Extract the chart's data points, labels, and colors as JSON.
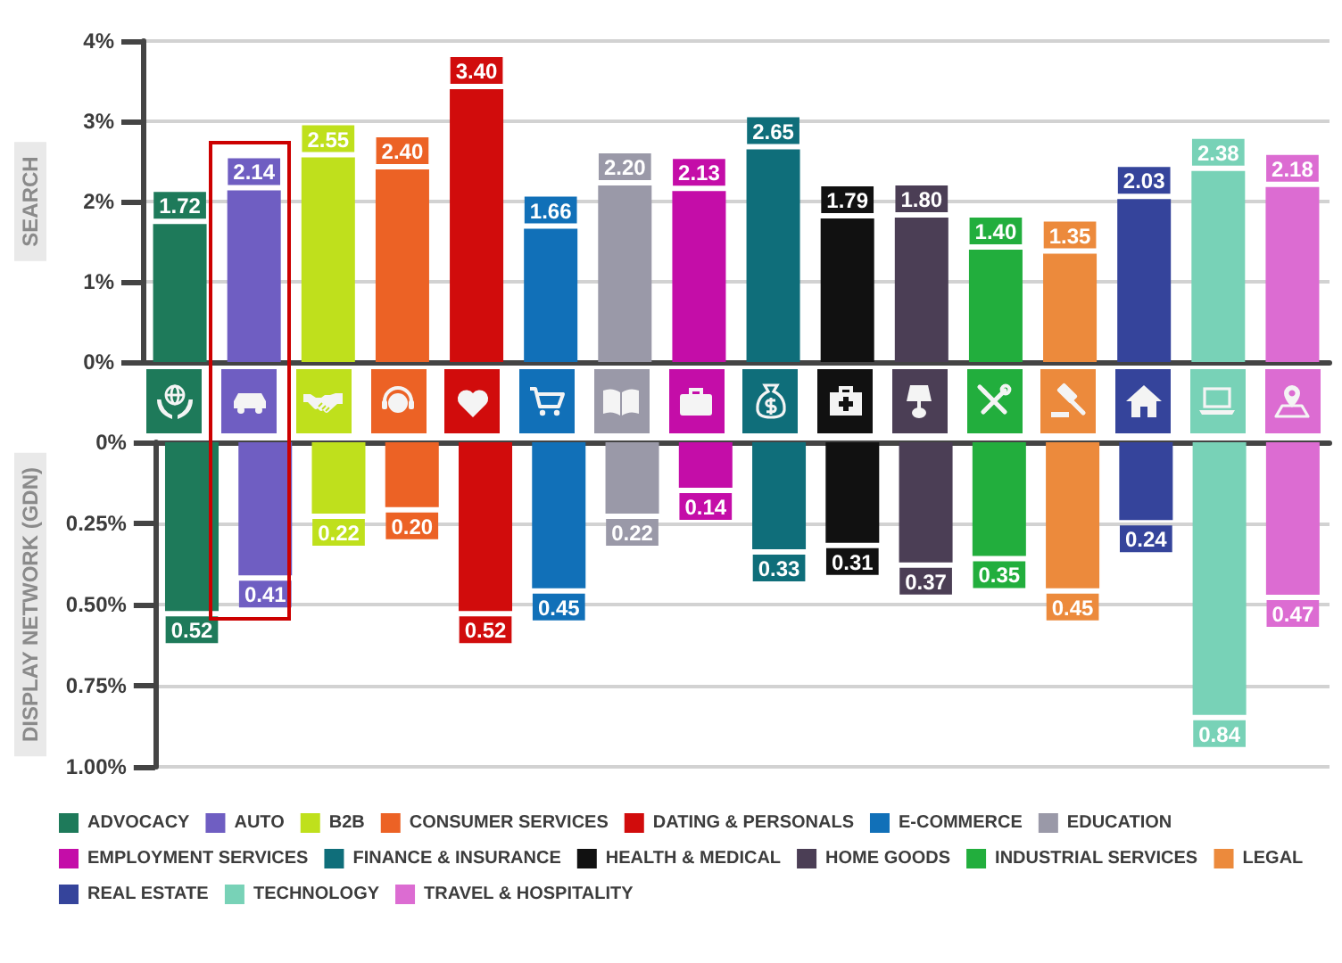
{
  "chart_data": [
    {
      "type": "bar",
      "ylabel": "SEARCH",
      "categories": [
        null,
        null,
        null,
        null,
        null,
        null,
        null,
        null,
        null,
        null,
        null,
        null,
        null,
        null,
        null,
        null
      ],
      "series": [
        {
          "color": "#1e7a5a",
          "values": [
            1.72,
            null,
            null,
            null,
            null,
            null,
            null,
            null,
            null,
            null,
            null,
            null,
            null,
            null,
            null,
            null
          ],
          "value_labels": [
            "1.72",
            null,
            null,
            null,
            null,
            null,
            null,
            null,
            null,
            null,
            null,
            null,
            null,
            null,
            null,
            null
          ]
        },
        {
          "color": "#6f5ec2",
          "values": [
            null,
            2.14,
            null,
            null,
            null,
            null,
            null,
            null,
            null,
            null,
            null,
            null,
            null,
            null,
            null,
            null
          ],
          "value_labels": [
            null,
            "2.14",
            null,
            null,
            null,
            null,
            null,
            null,
            null,
            null,
            null,
            null,
            null,
            null,
            null,
            null
          ]
        },
        {
          "color": "#bfe01c",
          "values": [
            null,
            null,
            2.55,
            null,
            null,
            null,
            null,
            null,
            null,
            null,
            null,
            null,
            null,
            null,
            null,
            null
          ],
          "value_labels": [
            null,
            null,
            "2.55",
            null,
            null,
            null,
            null,
            null,
            null,
            null,
            null,
            null,
            null,
            null,
            null,
            null
          ]
        },
        {
          "color": "#ec6225",
          "values": [
            null,
            null,
            null,
            2.4,
            null,
            null,
            null,
            null,
            null,
            null,
            null,
            null,
            null,
            null,
            null,
            null
          ],
          "value_labels": [
            null,
            null,
            null,
            "2.40",
            null,
            null,
            null,
            null,
            null,
            null,
            null,
            null,
            null,
            null,
            null,
            null
          ]
        },
        {
          "color": "#d10c0c",
          "values": [
            null,
            null,
            null,
            null,
            3.4,
            null,
            null,
            null,
            null,
            null,
            null,
            null,
            null,
            null,
            null,
            null
          ],
          "value_labels": [
            null,
            null,
            null,
            null,
            "3.40",
            null,
            null,
            null,
            null,
            null,
            null,
            null,
            null,
            null,
            null,
            null
          ]
        },
        {
          "color": "#1170b8",
          "values": [
            null,
            null,
            null,
            null,
            null,
            1.66,
            null,
            null,
            null,
            null,
            null,
            null,
            null,
            null,
            null,
            null
          ],
          "value_labels": [
            null,
            null,
            null,
            null,
            null,
            "1.66",
            null,
            null,
            null,
            null,
            null,
            null,
            null,
            null,
            null,
            null
          ]
        },
        {
          "color": "#9a99a8",
          "values": [
            null,
            null,
            null,
            null,
            null,
            null,
            2.2,
            null,
            null,
            null,
            null,
            null,
            null,
            null,
            null,
            null
          ],
          "value_labels": [
            null,
            null,
            null,
            null,
            null,
            null,
            "2.20",
            null,
            null,
            null,
            null,
            null,
            null,
            null,
            null,
            null
          ]
        },
        {
          "color": "#c40da8",
          "values": [
            null,
            null,
            null,
            null,
            null,
            null,
            null,
            2.13,
            null,
            null,
            null,
            null,
            null,
            null,
            null,
            null
          ],
          "value_labels": [
            null,
            null,
            null,
            null,
            null,
            null,
            null,
            "2.13",
            null,
            null,
            null,
            null,
            null,
            null,
            null,
            null
          ]
        },
        {
          "color": "#0f6e7a",
          "values": [
            null,
            null,
            null,
            null,
            null,
            null,
            null,
            null,
            2.65,
            null,
            null,
            null,
            null,
            null,
            null,
            null
          ],
          "value_labels": [
            null,
            null,
            null,
            null,
            null,
            null,
            null,
            null,
            "2.65",
            null,
            null,
            null,
            null,
            null,
            null,
            null
          ]
        },
        {
          "color": "#111111",
          "values": [
            null,
            null,
            null,
            null,
            null,
            null,
            null,
            null,
            null,
            1.79,
            null,
            null,
            null,
            null,
            null,
            null
          ],
          "value_labels": [
            null,
            null,
            null,
            null,
            null,
            null,
            null,
            null,
            null,
            "1.79",
            null,
            null,
            null,
            null,
            null,
            null
          ]
        },
        {
          "color": "#4b3e55",
          "values": [
            null,
            null,
            null,
            null,
            null,
            null,
            null,
            null,
            null,
            null,
            1.8,
            null,
            null,
            null,
            null,
            null
          ],
          "value_labels": [
            null,
            null,
            null,
            null,
            null,
            null,
            null,
            null,
            null,
            null,
            "1.80",
            null,
            null,
            null,
            null,
            null
          ]
        },
        {
          "color": "#22ae3d",
          "values": [
            null,
            null,
            null,
            null,
            null,
            null,
            null,
            null,
            null,
            null,
            null,
            1.4,
            null,
            null,
            null,
            null
          ],
          "value_labels": [
            null,
            null,
            null,
            null,
            null,
            null,
            null,
            null,
            null,
            null,
            null,
            "1.40",
            null,
            null,
            null,
            null
          ]
        },
        {
          "color": "#ec8a3c",
          "values": [
            null,
            null,
            null,
            null,
            null,
            null,
            null,
            null,
            null,
            null,
            null,
            null,
            1.35,
            null,
            null,
            null
          ],
          "value_labels": [
            null,
            null,
            null,
            null,
            null,
            null,
            null,
            null,
            null,
            null,
            null,
            null,
            "1.35",
            null,
            null,
            null
          ]
        },
        {
          "color": "#35449b",
          "values": [
            null,
            null,
            null,
            null,
            null,
            null,
            null,
            null,
            null,
            null,
            null,
            null,
            null,
            2.03,
            null,
            null
          ],
          "value_labels": [
            null,
            null,
            null,
            null,
            null,
            null,
            null,
            null,
            null,
            null,
            null,
            null,
            null,
            "2.03",
            null,
            null
          ]
        },
        {
          "color": "#78d2b7",
          "values": [
            null,
            null,
            null,
            null,
            null,
            null,
            null,
            null,
            null,
            null,
            null,
            null,
            null,
            null,
            2.38,
            null
          ],
          "value_labels": [
            null,
            null,
            null,
            null,
            null,
            null,
            null,
            null,
            null,
            null,
            null,
            null,
            null,
            null,
            "2.38",
            null
          ]
        },
        {
          "color": "#dc6cd2",
          "values": [
            null,
            null,
            null,
            null,
            null,
            null,
            null,
            null,
            null,
            null,
            null,
            null,
            null,
            null,
            null,
            2.18
          ],
          "value_labels": [
            null,
            null,
            null,
            null,
            null,
            null,
            null,
            null,
            null,
            null,
            null,
            null,
            null,
            null,
            null,
            "2.18"
          ]
        }
      ],
      "ylim": [
        0,
        4
      ],
      "yticks": [
        {
          "value": 0,
          "label": "0%"
        },
        {
          "value": 1,
          "label": "1%"
        },
        {
          "value": 2,
          "label": "2%"
        },
        {
          "value": 3,
          "label": "3%"
        },
        {
          "value": 4,
          "label": "4%"
        }
      ],
      "grid": "y",
      "tick_labels": "y"
    },
    {
      "type": "bar",
      "ylabel": "DISPLAY NETWORK (GDN)",
      "categories": [
        null,
        null,
        null,
        null,
        null,
        null,
        null,
        null,
        null,
        null,
        null,
        null,
        null,
        null,
        null,
        null
      ],
      "series": [
        {
          "name": "ADVOCACY",
          "color": "#1e7a5a",
          "values": [
            0.52,
            null,
            null,
            null,
            null,
            null,
            null,
            null,
            null,
            null,
            null,
            null,
            null,
            null,
            null,
            null
          ],
          "value_labels": [
            "0.52",
            null,
            null,
            null,
            null,
            null,
            null,
            null,
            null,
            null,
            null,
            null,
            null,
            null,
            null,
            null
          ]
        },
        {
          "name": "AUTO",
          "color": "#6f5ec2",
          "values": [
            null,
            0.41,
            null,
            null,
            null,
            null,
            null,
            null,
            null,
            null,
            null,
            null,
            null,
            null,
            null,
            null
          ],
          "value_labels": [
            null,
            "0.41",
            null,
            null,
            null,
            null,
            null,
            null,
            null,
            null,
            null,
            null,
            null,
            null,
            null,
            null
          ]
        },
        {
          "name": "B2B",
          "color": "#bfe01c",
          "values": [
            null,
            null,
            0.22,
            null,
            null,
            null,
            null,
            null,
            null,
            null,
            null,
            null,
            null,
            null,
            null,
            null
          ],
          "value_labels": [
            null,
            null,
            "0.22",
            null,
            null,
            null,
            null,
            null,
            null,
            null,
            null,
            null,
            null,
            null,
            null,
            null
          ]
        },
        {
          "name": "CONSUMER SERVICES",
          "color": "#ec6225",
          "values": [
            null,
            null,
            null,
            0.2,
            null,
            null,
            null,
            null,
            null,
            null,
            null,
            null,
            null,
            null,
            null,
            null
          ],
          "value_labels": [
            null,
            null,
            null,
            "0.20",
            null,
            null,
            null,
            null,
            null,
            null,
            null,
            null,
            null,
            null,
            null,
            null
          ]
        },
        {
          "name": "DATING & PERSONALS",
          "color": "#d10c0c",
          "values": [
            null,
            null,
            null,
            null,
            0.52,
            null,
            null,
            null,
            null,
            null,
            null,
            null,
            null,
            null,
            null,
            null
          ],
          "value_labels": [
            null,
            null,
            null,
            null,
            "0.52",
            null,
            null,
            null,
            null,
            null,
            null,
            null,
            null,
            null,
            null,
            null
          ]
        },
        {
          "name": "E-COMMERCE",
          "color": "#1170b8",
          "values": [
            null,
            null,
            null,
            null,
            null,
            0.45,
            null,
            null,
            null,
            null,
            null,
            null,
            null,
            null,
            null,
            null
          ],
          "value_labels": [
            null,
            null,
            null,
            null,
            null,
            "0.45",
            null,
            null,
            null,
            null,
            null,
            null,
            null,
            null,
            null,
            null
          ]
        },
        {
          "name": "EDUCATION",
          "color": "#9a99a8",
          "values": [
            null,
            null,
            null,
            null,
            null,
            null,
            0.22,
            null,
            null,
            null,
            null,
            null,
            null,
            null,
            null,
            null
          ],
          "value_labels": [
            null,
            null,
            null,
            null,
            null,
            null,
            "0.22",
            null,
            null,
            null,
            null,
            null,
            null,
            null,
            null,
            null
          ]
        },
        {
          "name": "EMPLOYMENT SERVICES",
          "color": "#c40da8",
          "values": [
            null,
            null,
            null,
            null,
            null,
            null,
            null,
            0.14,
            null,
            null,
            null,
            null,
            null,
            null,
            null,
            null
          ],
          "value_labels": [
            null,
            null,
            null,
            null,
            null,
            null,
            null,
            "0.14",
            null,
            null,
            null,
            null,
            null,
            null,
            null,
            null
          ]
        },
        {
          "name": "FINANCE & INSURANCE",
          "color": "#0f6e7a",
          "values": [
            null,
            null,
            null,
            null,
            null,
            null,
            null,
            null,
            0.33,
            null,
            null,
            null,
            null,
            null,
            null,
            null
          ],
          "value_labels": [
            null,
            null,
            null,
            null,
            null,
            null,
            null,
            null,
            "0.33",
            null,
            null,
            null,
            null,
            null,
            null,
            null
          ]
        },
        {
          "name": "HEALTH & MEDICAL",
          "color": "#111111",
          "values": [
            null,
            null,
            null,
            null,
            null,
            null,
            null,
            null,
            null,
            0.31,
            null,
            null,
            null,
            null,
            null,
            null
          ],
          "value_labels": [
            null,
            null,
            null,
            null,
            null,
            null,
            null,
            null,
            null,
            "0.31",
            null,
            null,
            null,
            null,
            null,
            null
          ]
        },
        {
          "name": "HOME GOODS",
          "color": "#4b3e55",
          "values": [
            null,
            null,
            null,
            null,
            null,
            null,
            null,
            null,
            null,
            null,
            0.37,
            null,
            null,
            null,
            null,
            null
          ],
          "value_labels": [
            null,
            null,
            null,
            null,
            null,
            null,
            null,
            null,
            null,
            null,
            "0.37",
            null,
            null,
            null,
            null,
            null
          ]
        },
        {
          "name": "INDUSTRIAL SERVICES",
          "color": "#22ae3d",
          "values": [
            null,
            null,
            null,
            null,
            null,
            null,
            null,
            null,
            null,
            null,
            null,
            0.35,
            null,
            null,
            null,
            null
          ],
          "value_labels": [
            null,
            null,
            null,
            null,
            null,
            null,
            null,
            null,
            null,
            null,
            null,
            "0.35",
            null,
            null,
            null,
            null
          ]
        },
        {
          "name": "LEGAL",
          "color": "#ec8a3c",
          "values": [
            null,
            null,
            null,
            null,
            null,
            null,
            null,
            null,
            null,
            null,
            null,
            null,
            0.45,
            null,
            null,
            null
          ],
          "value_labels": [
            null,
            null,
            null,
            null,
            null,
            null,
            null,
            null,
            null,
            null,
            null,
            null,
            "0.45",
            null,
            null,
            null
          ]
        },
        {
          "name": "REAL ESTATE",
          "color": "#35449b",
          "values": [
            null,
            null,
            null,
            null,
            null,
            null,
            null,
            null,
            null,
            null,
            null,
            null,
            null,
            0.24,
            null,
            null
          ],
          "value_labels": [
            null,
            null,
            null,
            null,
            null,
            null,
            null,
            null,
            null,
            null,
            null,
            null,
            null,
            "0.24",
            null,
            null
          ]
        },
        {
          "name": "TECHNOLOGY",
          "color": "#78d2b7",
          "values": [
            null,
            null,
            null,
            null,
            null,
            null,
            null,
            null,
            null,
            null,
            null,
            null,
            null,
            null,
            0.84,
            null
          ],
          "value_labels": [
            null,
            null,
            null,
            null,
            null,
            null,
            null,
            null,
            null,
            null,
            null,
            null,
            null,
            null,
            "0.84",
            null
          ]
        },
        {
          "name": "TRAVEL & HOSPITALITY",
          "color": "#dc6cd2",
          "values": [
            null,
            null,
            null,
            null,
            null,
            null,
            null,
            null,
            null,
            null,
            null,
            null,
            null,
            null,
            null,
            0.47
          ],
          "value_labels": [
            null,
            null,
            null,
            null,
            null,
            null,
            null,
            null,
            null,
            null,
            null,
            null,
            null,
            null,
            null,
            "0.47"
          ]
        }
      ],
      "ylim": [
        1,
        0
      ],
      "yticks": [
        {
          "value": 0,
          "label": "0%"
        },
        {
          "value": 0.25,
          "label": "0.25%"
        },
        {
          "value": 0.5,
          "label": "0.50%"
        },
        {
          "value": 0.75,
          "label": "0.75%"
        },
        {
          "value": 1,
          "label": "1.00%"
        }
      ],
      "grid": "y",
      "tick_labels": "y",
      "legend": "bottom"
    }
  ]
}
